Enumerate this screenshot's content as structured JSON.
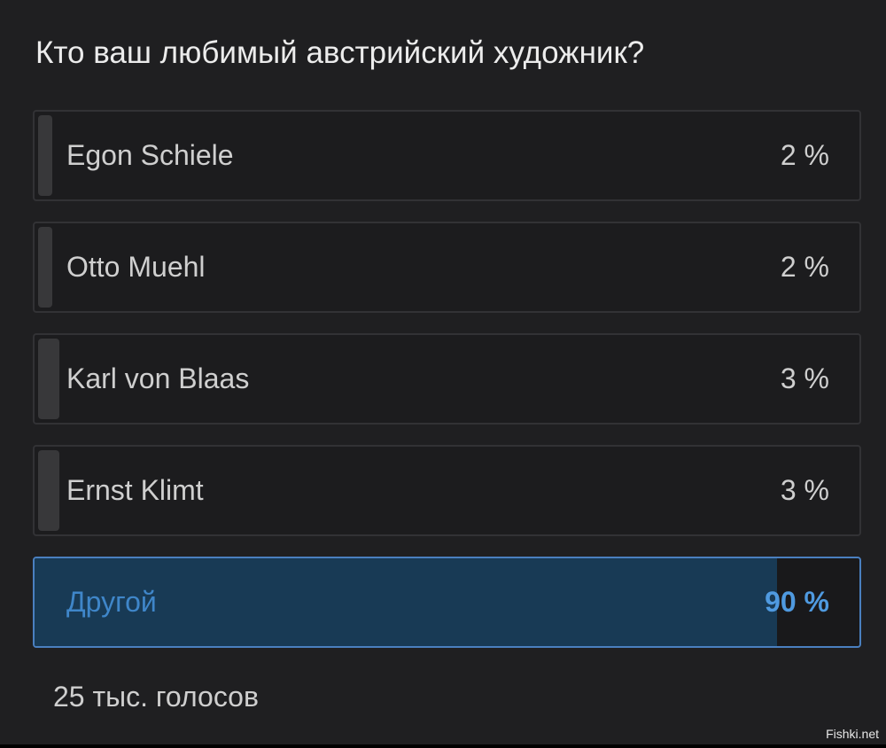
{
  "poll": {
    "question": "Кто ваш любимый австрийский художник?",
    "options": [
      {
        "label": "Egon Schiele",
        "percent_text": "2 %",
        "percent": 2,
        "selected": false
      },
      {
        "label": "Otto Muehl",
        "percent_text": "2 %",
        "percent": 2,
        "selected": false
      },
      {
        "label": "Karl von Blaas",
        "percent_text": "3 %",
        "percent": 3,
        "selected": false
      },
      {
        "label": "Ernst Klimt",
        "percent_text": "3 %",
        "percent": 3,
        "selected": false
      },
      {
        "label": "Другой",
        "percent_text": "90 %",
        "percent": 90,
        "selected": true
      }
    ],
    "votes": "25 тыс. голосов"
  },
  "watermark": "Fishki.net",
  "colors": {
    "background": "#1f1f21",
    "accent": "#4f9ae0",
    "selected_fill": "#183a55"
  }
}
